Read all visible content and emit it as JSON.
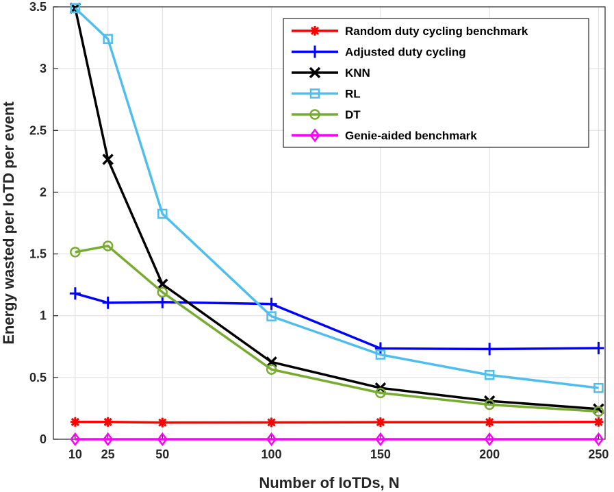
{
  "chart_data": {
    "type": "line",
    "title": "",
    "xlabel": "Number of IoTDs, N",
    "ylabel": "Energy wasted per IoTD per event",
    "x": [
      10,
      25,
      50,
      100,
      150,
      200,
      250
    ],
    "xticks": [
      "10",
      "25",
      "50",
      "100",
      "150",
      "200",
      "250"
    ],
    "yticks": [
      "0",
      "0.5",
      "1",
      "1.5",
      "2",
      "2.5",
      "3",
      "3.5"
    ],
    "xlim": [
      0,
      253
    ],
    "ylim": [
      0,
      3.5
    ],
    "grid": true,
    "legend_position": "top-right",
    "series": [
      {
        "name": "Random duty cycling benchmark",
        "color": "#ff0000",
        "marker": "asterisk",
        "values": [
          0.14,
          0.14,
          0.135,
          0.136,
          0.138,
          0.138,
          0.14
        ]
      },
      {
        "name": "Adjusted duty cycling",
        "color": "#0000ff",
        "marker": "plus",
        "values": [
          1.18,
          1.105,
          1.11,
          1.095,
          0.735,
          0.73,
          0.738
        ]
      },
      {
        "name": "KNN",
        "color": "#000000",
        "marker": "x",
        "values": [
          3.49,
          2.265,
          1.255,
          0.625,
          0.415,
          0.31,
          0.245
        ]
      },
      {
        "name": "RL",
        "color": "#4dbeee",
        "marker": "square",
        "values": [
          3.49,
          3.24,
          1.825,
          0.995,
          0.685,
          0.52,
          0.415
        ]
      },
      {
        "name": "DT",
        "color": "#77ac30",
        "marker": "circle",
        "values": [
          1.515,
          1.565,
          1.19,
          0.565,
          0.375,
          0.28,
          0.225
        ]
      },
      {
        "name": "Genie-aided benchmark",
        "color": "#ff00ff",
        "marker": "diamond",
        "values": [
          0,
          0,
          0,
          0,
          0,
          0,
          0
        ]
      }
    ]
  }
}
